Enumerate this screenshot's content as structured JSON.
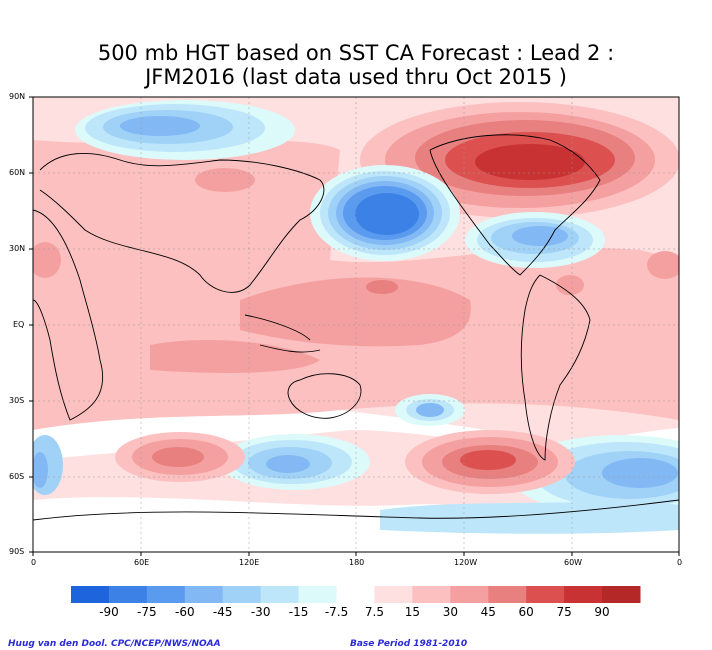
{
  "header": {
    "title_line1": "500 mb HGT based on SST CA Forecast : Lead 2 :",
    "title_line2": "JFM2016 (last data used thru Oct 2015 )"
  },
  "axes": {
    "lat_labels": [
      "90N",
      "60N",
      "30N",
      "EQ",
      "30S",
      "60S",
      "90S"
    ],
    "lon_labels": [
      "0",
      "60E",
      "120E",
      "180",
      "120W",
      "60W",
      "0"
    ]
  },
  "colorbar": {
    "labels": [
      "-90",
      "-75",
      "-60",
      "-45",
      "-30",
      "-15",
      "-7.5",
      "7.5",
      "15",
      "30",
      "45",
      "60",
      "75",
      "90"
    ],
    "colors": [
      "#1e64dc",
      "#3c82e6",
      "#5a9bf0",
      "#82b9f5",
      "#a0d2f8",
      "#bee6fa",
      "#dcfafa",
      "#ffffff",
      "#fee0e0",
      "#fcc0c0",
      "#f5a0a0",
      "#e88080",
      "#dc5050",
      "#c83232",
      "#b42828"
    ]
  },
  "footer": {
    "credit_left": "Huug van den Dool. CPC/NCEP/NWS/NOAA",
    "credit_right": "Base Period 1981-2010"
  }
}
